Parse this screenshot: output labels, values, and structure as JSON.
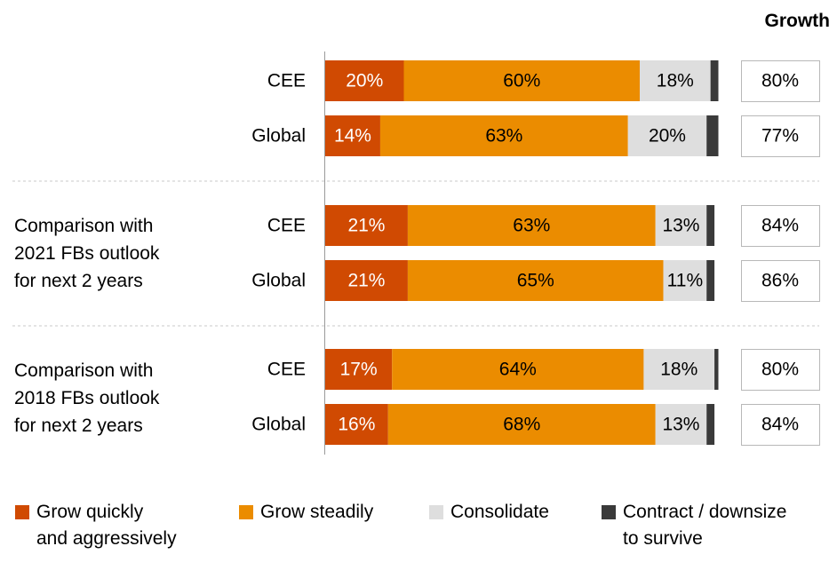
{
  "growth_header": "Growth",
  "groups": [
    {
      "label_lines": []
    },
    {
      "label_lines": [
        "Comparison with",
        "2021 FBs outlook",
        "for next 2 years"
      ]
    },
    {
      "label_lines": [
        "Comparison with",
        "2018 FBs outlook",
        "for next 2 years"
      ]
    }
  ],
  "legend": [
    {
      "lines": [
        "Grow quickly",
        "and aggressively"
      ],
      "color": "#D04A02"
    },
    {
      "lines": [
        "Grow steadily"
      ],
      "color": "#EB8C00"
    },
    {
      "lines": [
        "Consolidate"
      ],
      "color": "#DEDEDE"
    },
    {
      "lines": [
        "Contract / downsize",
        "to survive"
      ],
      "color": "#3A3A3A"
    }
  ],
  "chart_data": {
    "type": "bar",
    "orientation": "horizontal",
    "stacked": true,
    "xlim": [
      0,
      100
    ],
    "categories": [
      "CEE",
      "Global",
      "CEE",
      "Global",
      "CEE",
      "Global"
    ],
    "series": [
      {
        "name": "Grow quickly and aggressively",
        "color": "#D04A02",
        "values": [
          20,
          14,
          21,
          21,
          17,
          16
        ],
        "labels": [
          "20%",
          "14%",
          "21%",
          "21%",
          "17%",
          "16%"
        ]
      },
      {
        "name": "Grow steadily",
        "color": "#EB8C00",
        "values": [
          60,
          63,
          63,
          65,
          64,
          68
        ],
        "labels": [
          "60%",
          "63%",
          "63%",
          "65%",
          "64%",
          "68%"
        ]
      },
      {
        "name": "Consolidate",
        "color": "#DEDEDE",
        "values": [
          18,
          20,
          13,
          11,
          18,
          13
        ],
        "labels": [
          "18%",
          "20%",
          "13%",
          "11%",
          "18%",
          "13%"
        ]
      },
      {
        "name": "Contract / downsize to survive",
        "color": "#3A3A3A",
        "values": [
          2,
          3,
          2,
          2,
          1,
          2
        ],
        "labels": [
          "",
          "",
          "",
          "",
          "",
          ""
        ]
      }
    ],
    "growth": [
      "80%",
      "77%",
      "84%",
      "86%",
      "80%",
      "84%"
    ]
  }
}
